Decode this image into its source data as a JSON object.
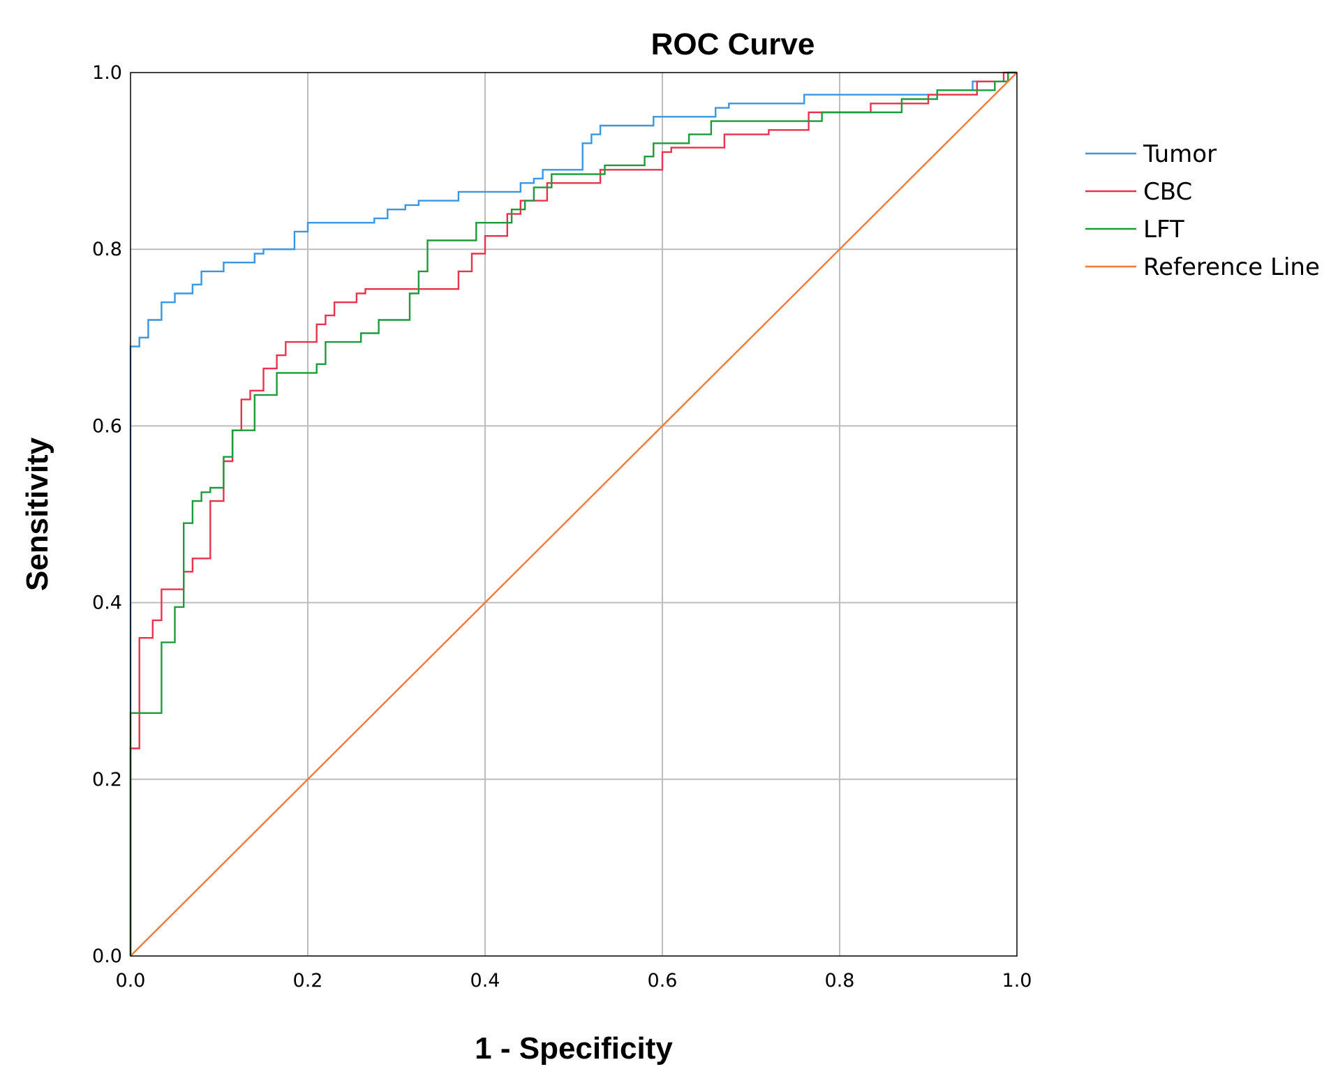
{
  "chart_data": {
    "type": "line",
    "title": "ROC Curve",
    "xlabel": "1 - Specificity",
    "ylabel": "Sensitivity",
    "xlim": [
      0,
      1
    ],
    "ylim": [
      0,
      1
    ],
    "x_ticks": [
      0.0,
      0.2,
      0.4,
      0.6,
      0.8,
      1.0
    ],
    "y_ticks": [
      0.0,
      0.2,
      0.4,
      0.6,
      0.8,
      1.0
    ],
    "x_tick_labels": [
      "0.0",
      "0.2",
      "0.4",
      "0.6",
      "0.8",
      "1.0"
    ],
    "y_tick_labels": [
      "0.0",
      "0.2",
      "0.4",
      "0.6",
      "0.8",
      "1.0"
    ],
    "grid": true,
    "legend_position": "right",
    "series": [
      {
        "name": "Tumor",
        "color": "#3a96e0",
        "points": [
          [
            0,
            0
          ],
          [
            0,
            0.69
          ],
          [
            0.01,
            0.69
          ],
          [
            0.01,
            0.7
          ],
          [
            0.02,
            0.7
          ],
          [
            0.02,
            0.72
          ],
          [
            0.035,
            0.72
          ],
          [
            0.035,
            0.74
          ],
          [
            0.05,
            0.74
          ],
          [
            0.05,
            0.75
          ],
          [
            0.07,
            0.75
          ],
          [
            0.07,
            0.76
          ],
          [
            0.08,
            0.76
          ],
          [
            0.08,
            0.775
          ],
          [
            0.105,
            0.775
          ],
          [
            0.105,
            0.785
          ],
          [
            0.14,
            0.785
          ],
          [
            0.14,
            0.795
          ],
          [
            0.15,
            0.795
          ],
          [
            0.15,
            0.8
          ],
          [
            0.185,
            0.8
          ],
          [
            0.185,
            0.82
          ],
          [
            0.2,
            0.82
          ],
          [
            0.2,
            0.83
          ],
          [
            0.275,
            0.83
          ],
          [
            0.275,
            0.835
          ],
          [
            0.29,
            0.835
          ],
          [
            0.29,
            0.845
          ],
          [
            0.31,
            0.845
          ],
          [
            0.31,
            0.85
          ],
          [
            0.325,
            0.85
          ],
          [
            0.325,
            0.855
          ],
          [
            0.37,
            0.855
          ],
          [
            0.37,
            0.865
          ],
          [
            0.44,
            0.865
          ],
          [
            0.44,
            0.875
          ],
          [
            0.455,
            0.875
          ],
          [
            0.455,
            0.88
          ],
          [
            0.465,
            0.88
          ],
          [
            0.465,
            0.89
          ],
          [
            0.51,
            0.89
          ],
          [
            0.51,
            0.92
          ],
          [
            0.52,
            0.92
          ],
          [
            0.52,
            0.93
          ],
          [
            0.53,
            0.93
          ],
          [
            0.53,
            0.94
          ],
          [
            0.59,
            0.94
          ],
          [
            0.59,
            0.95
          ],
          [
            0.66,
            0.95
          ],
          [
            0.66,
            0.96
          ],
          [
            0.675,
            0.96
          ],
          [
            0.675,
            0.965
          ],
          [
            0.76,
            0.965
          ],
          [
            0.76,
            0.975
          ],
          [
            0.91,
            0.975
          ],
          [
            0.91,
            0.98
          ],
          [
            0.95,
            0.98
          ],
          [
            0.95,
            0.99
          ],
          [
            0.99,
            0.99
          ],
          [
            0.99,
            1.0
          ],
          [
            1.0,
            1.0
          ]
        ]
      },
      {
        "name": "CBC",
        "color": "#e8334e",
        "points": [
          [
            0,
            0
          ],
          [
            0,
            0.235
          ],
          [
            0.01,
            0.235
          ],
          [
            0.01,
            0.36
          ],
          [
            0.025,
            0.36
          ],
          [
            0.025,
            0.38
          ],
          [
            0.035,
            0.38
          ],
          [
            0.035,
            0.415
          ],
          [
            0.06,
            0.415
          ],
          [
            0.06,
            0.435
          ],
          [
            0.07,
            0.435
          ],
          [
            0.07,
            0.45
          ],
          [
            0.09,
            0.45
          ],
          [
            0.09,
            0.515
          ],
          [
            0.105,
            0.515
          ],
          [
            0.105,
            0.56
          ],
          [
            0.115,
            0.56
          ],
          [
            0.115,
            0.595
          ],
          [
            0.125,
            0.595
          ],
          [
            0.125,
            0.63
          ],
          [
            0.135,
            0.63
          ],
          [
            0.135,
            0.64
          ],
          [
            0.15,
            0.64
          ],
          [
            0.15,
            0.665
          ],
          [
            0.165,
            0.665
          ],
          [
            0.165,
            0.68
          ],
          [
            0.175,
            0.68
          ],
          [
            0.175,
            0.695
          ],
          [
            0.21,
            0.695
          ],
          [
            0.21,
            0.715
          ],
          [
            0.22,
            0.715
          ],
          [
            0.22,
            0.725
          ],
          [
            0.23,
            0.725
          ],
          [
            0.23,
            0.74
          ],
          [
            0.255,
            0.74
          ],
          [
            0.255,
            0.75
          ],
          [
            0.265,
            0.75
          ],
          [
            0.265,
            0.755
          ],
          [
            0.37,
            0.755
          ],
          [
            0.37,
            0.775
          ],
          [
            0.385,
            0.775
          ],
          [
            0.385,
            0.795
          ],
          [
            0.4,
            0.795
          ],
          [
            0.4,
            0.815
          ],
          [
            0.425,
            0.815
          ],
          [
            0.425,
            0.84
          ],
          [
            0.44,
            0.84
          ],
          [
            0.44,
            0.855
          ],
          [
            0.47,
            0.855
          ],
          [
            0.47,
            0.875
          ],
          [
            0.53,
            0.875
          ],
          [
            0.53,
            0.89
          ],
          [
            0.6,
            0.89
          ],
          [
            0.6,
            0.91
          ],
          [
            0.61,
            0.91
          ],
          [
            0.61,
            0.915
          ],
          [
            0.67,
            0.915
          ],
          [
            0.67,
            0.93
          ],
          [
            0.72,
            0.93
          ],
          [
            0.72,
            0.935
          ],
          [
            0.765,
            0.935
          ],
          [
            0.765,
            0.955
          ],
          [
            0.835,
            0.955
          ],
          [
            0.835,
            0.965
          ],
          [
            0.9,
            0.965
          ],
          [
            0.9,
            0.975
          ],
          [
            0.955,
            0.975
          ],
          [
            0.955,
            0.99
          ],
          [
            0.985,
            0.99
          ],
          [
            0.985,
            1.0
          ],
          [
            1.0,
            1.0
          ]
        ]
      },
      {
        "name": "LFT",
        "color": "#1f9a3a",
        "points": [
          [
            0,
            0
          ],
          [
            0,
            0.275
          ],
          [
            0.035,
            0.275
          ],
          [
            0.035,
            0.355
          ],
          [
            0.05,
            0.355
          ],
          [
            0.05,
            0.395
          ],
          [
            0.06,
            0.395
          ],
          [
            0.06,
            0.49
          ],
          [
            0.07,
            0.49
          ],
          [
            0.07,
            0.515
          ],
          [
            0.08,
            0.515
          ],
          [
            0.08,
            0.525
          ],
          [
            0.09,
            0.525
          ],
          [
            0.09,
            0.53
          ],
          [
            0.105,
            0.53
          ],
          [
            0.105,
            0.565
          ],
          [
            0.115,
            0.565
          ],
          [
            0.115,
            0.595
          ],
          [
            0.14,
            0.595
          ],
          [
            0.14,
            0.635
          ],
          [
            0.165,
            0.635
          ],
          [
            0.165,
            0.66
          ],
          [
            0.21,
            0.66
          ],
          [
            0.21,
            0.67
          ],
          [
            0.22,
            0.67
          ],
          [
            0.22,
            0.695
          ],
          [
            0.26,
            0.695
          ],
          [
            0.26,
            0.705
          ],
          [
            0.28,
            0.705
          ],
          [
            0.28,
            0.72
          ],
          [
            0.315,
            0.72
          ],
          [
            0.315,
            0.75
          ],
          [
            0.325,
            0.75
          ],
          [
            0.325,
            0.775
          ],
          [
            0.335,
            0.775
          ],
          [
            0.335,
            0.81
          ],
          [
            0.39,
            0.81
          ],
          [
            0.39,
            0.83
          ],
          [
            0.43,
            0.83
          ],
          [
            0.43,
            0.845
          ],
          [
            0.445,
            0.845
          ],
          [
            0.445,
            0.855
          ],
          [
            0.455,
            0.855
          ],
          [
            0.455,
            0.87
          ],
          [
            0.475,
            0.87
          ],
          [
            0.475,
            0.885
          ],
          [
            0.535,
            0.885
          ],
          [
            0.535,
            0.895
          ],
          [
            0.58,
            0.895
          ],
          [
            0.58,
            0.905
          ],
          [
            0.59,
            0.905
          ],
          [
            0.59,
            0.92
          ],
          [
            0.63,
            0.92
          ],
          [
            0.63,
            0.93
          ],
          [
            0.655,
            0.93
          ],
          [
            0.655,
            0.945
          ],
          [
            0.78,
            0.945
          ],
          [
            0.78,
            0.955
          ],
          [
            0.87,
            0.955
          ],
          [
            0.87,
            0.97
          ],
          [
            0.91,
            0.97
          ],
          [
            0.91,
            0.98
          ],
          [
            0.975,
            0.98
          ],
          [
            0.975,
            0.99
          ],
          [
            0.99,
            0.99
          ],
          [
            0.99,
            1.0
          ],
          [
            1.0,
            1.0
          ]
        ]
      },
      {
        "name": "Reference Line",
        "color": "#f07a3a",
        "points": [
          [
            0,
            0
          ],
          [
            1,
            1
          ]
        ]
      }
    ]
  }
}
